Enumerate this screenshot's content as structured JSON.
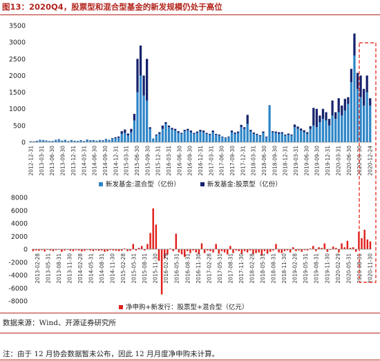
{
  "figure": {
    "title": "图13：2020Q4，股票型和混合型基金的新发规模仍处于高位",
    "source": "数据来源：Wind、开源证券研究所",
    "footnote": "注：由于 12 月协会数据暂未公布，因此 12 月月度净申购未计算。"
  },
  "colors": {
    "accent_red": "#b3261e",
    "hybrid_blue": "#2e86c8",
    "equity_navy": "#16236d",
    "net_red": "#e0201b",
    "highlight_box": "#e8372d"
  },
  "chart_data": [
    {
      "type": "bar",
      "stacked": true,
      "ylim": [
        0,
        3500
      ],
      "yticks": [
        0,
        500,
        1000,
        1500,
        2000,
        2500,
        3000,
        3500
      ],
      "xtick_labels": [
        "2012-12-31",
        "2013-03-31",
        "2013-06-30",
        "2013-09-30",
        "2013-12-31",
        "2014-03-31",
        "2014-06-30",
        "2014-09-30",
        "2014-12-31",
        "2015-03-31",
        "2015-06-30",
        "2015-09-30",
        "2015-12-31",
        "2016-03-31",
        "2016-06-30",
        "2016-09-30",
        "2016-12-31",
        "2017-03-31",
        "2017-06-30",
        "2017-09-30",
        "2017-12-31",
        "2018-03-31",
        "2018-06-30",
        "2018-09-30",
        "2018-12-31",
        "2019-03-31",
        "2019-06-30",
        "2019-09-30",
        "2019-12-31",
        "2020-03-31",
        "2020-06-30",
        "2020-09-30",
        "2020-12-24"
      ],
      "x_start": "2012-12",
      "x_end": "2020-12",
      "legend_position": "bottom",
      "series": [
        {
          "name": "新发基金:混合型（亿份）",
          "values": [
            25,
            20,
            30,
            60,
            55,
            40,
            30,
            35,
            60,
            80,
            45,
            60,
            30,
            55,
            40,
            35,
            50,
            30,
            70,
            50,
            55,
            40,
            55,
            50,
            80,
            60,
            100,
            120,
            130,
            250,
            280,
            200,
            300,
            650,
            1500,
            2000,
            1400,
            1250,
            400,
            100,
            200,
            250,
            400,
            550,
            450,
            380,
            350,
            280,
            250,
            330,
            350,
            300,
            250,
            280,
            320,
            300,
            250,
            220,
            300,
            220,
            200,
            150,
            120,
            150,
            300,
            250,
            280,
            450,
            400,
            550,
            320,
            250,
            220,
            180,
            280,
            150,
            1100,
            300,
            280,
            250,
            260,
            200,
            220,
            200,
            450,
            400,
            350,
            300,
            250,
            400,
            500,
            450,
            600,
            700,
            650,
            500,
            800,
            700,
            900,
            800,
            950,
            1150,
            1800,
            2600,
            1600,
            1350,
            1100,
            1500,
            1100
          ]
        },
        {
          "name": "新发基金:股票型（亿份）",
          "values": [
            5,
            5,
            10,
            10,
            10,
            10,
            5,
            5,
            10,
            10,
            5,
            10,
            5,
            10,
            5,
            5,
            10,
            5,
            10,
            10,
            10,
            5,
            10,
            10,
            15,
            10,
            20,
            30,
            40,
            80,
            100,
            60,
            100,
            200,
            1000,
            900,
            600,
            1250,
            50,
            10,
            30,
            50,
            100,
            50,
            50,
            50,
            50,
            50,
            30,
            40,
            50,
            50,
            30,
            40,
            50,
            50,
            30,
            30,
            50,
            30,
            30,
            20,
            20,
            20,
            50,
            40,
            40,
            70,
            50,
            270,
            50,
            40,
            30,
            30,
            40,
            20,
            10,
            30,
            40,
            50,
            40,
            30,
            40,
            30,
            80,
            70,
            60,
            60,
            50,
            80,
            530,
            550,
            200,
            300,
            250,
            200,
            450,
            200,
            420,
            300,
            350,
            200,
            400,
            660,
            480,
            650,
            500,
            500,
            220
          ]
        }
      ]
    },
    {
      "type": "bar",
      "ylim": [
        -8000,
        8000
      ],
      "yticks": [
        -8000,
        -6000,
        -4000,
        -2000,
        0,
        2000,
        4000,
        6000,
        8000
      ],
      "xtick_labels": [
        "2013-02-28",
        "2013-05-31",
        "2013-08-31",
        "2013-11-30",
        "2014-02-28",
        "2014-05-31",
        "2014-08-31",
        "2014-11-30",
        "2015-02-28",
        "2015-05-31",
        "2015-08-31",
        "2015-11-30",
        "2016-02-29",
        "2016-05-31",
        "2016-08-31",
        "2016-11-30",
        "2017-02-28",
        "2017-05-31",
        "2017-08-31",
        "2017-11-30",
        "2018-02-28",
        "2018-05-31",
        "2018-08-31",
        "2018-11-30",
        "2019-02-28",
        "2019-05-31",
        "2019-08-31",
        "2019-11-30",
        "2020-02-29",
        "2020-05-31",
        "2020-08-31",
        "2020-11-30"
      ],
      "x_start": "2013-01",
      "x_end": "2020-11",
      "legend_position": "bottom",
      "series": [
        {
          "name": "净申购+新发行：股票型+混合型（亿元）",
          "values": [
            -300,
            -200,
            -250,
            -150,
            -350,
            -100,
            -200,
            -300,
            -150,
            -100,
            -400,
            -200,
            -100,
            -250,
            -300,
            -150,
            -200,
            -350,
            -250,
            -100,
            -200,
            -300,
            -150,
            -250,
            -200,
            -400,
            -300,
            -150,
            -200,
            -250,
            -300,
            -250,
            100,
            -300,
            -250,
            800,
            -200,
            200,
            500,
            -200,
            800,
            2500,
            6300,
            3800,
            -1800,
            -7000,
            -1400,
            -800,
            100,
            -300,
            2400,
            -500,
            -800,
            -1200,
            -300,
            -600,
            -200,
            -500,
            -800,
            900,
            -600,
            -200,
            -300,
            -500,
            800,
            -700,
            -300,
            -500,
            -800,
            500,
            -600,
            -200,
            -300,
            -700,
            -300,
            -500,
            -200,
            -800,
            -600,
            -500,
            -1000,
            -300,
            -700,
            -400,
            -200,
            800,
            -500,
            -600,
            -300,
            -200,
            -500,
            300,
            -300,
            -200,
            -400,
            -150,
            -200,
            100,
            500,
            -300,
            300,
            200,
            900,
            -400,
            -100,
            400,
            200,
            -500,
            900,
            300,
            1300,
            200,
            300,
            -400,
            2700,
            1700,
            3000,
            1500,
            1200
          ]
        }
      ]
    }
  ]
}
